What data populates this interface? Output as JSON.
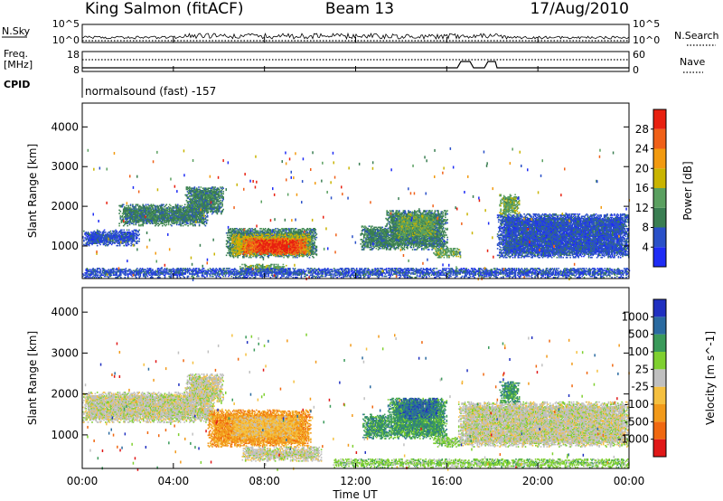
{
  "header": {
    "station": "King Salmon (fitACF)",
    "beam": "Beam 13",
    "date": "17/Aug/2010"
  },
  "left_labels": {
    "nsky": "N.Sky",
    "nsky_top": "10^5",
    "nsky_bottom": "10^0",
    "freq": "Freq.",
    "freq_unit": "[MHz]",
    "freq_top": "18",
    "freq_bottom": "8",
    "cpid": "CPID"
  },
  "right_labels": {
    "nsearch": "N.Search",
    "nsearch_top": "10^5",
    "nsearch_bottom": "10^0",
    "nave": "Nave",
    "nave_top": "60",
    "nave_bottom": "0"
  },
  "cpid_text": "normalsound (fast) -157",
  "xaxis": {
    "label": "Time UT",
    "ticks": [
      "00:00",
      "04:00",
      "08:00",
      "12:00",
      "16:00",
      "20:00",
      "00:00"
    ]
  },
  "colors": {
    "power": [
      "#1e2cf5",
      "#2a50c8",
      "#3a7e52",
      "#5aa060",
      "#c9b400",
      "#f29a10",
      "#f06018",
      "#e82010"
    ],
    "velocity": [
      "#e01818",
      "#f06810",
      "#f29a1a",
      "#f5c040",
      "#c0c0c0",
      "#7fd030",
      "#3a9a5a",
      "#2a6aa0",
      "#2030c0"
    ]
  },
  "chart_data": [
    {
      "type": "heatmap",
      "panel": "power",
      "ylabel": "Slant Range [km]",
      "yticks": [
        1000,
        2000,
        3000,
        4000
      ],
      "ylim": [
        180,
        4600
      ],
      "xlim_hours": [
        0,
        24
      ],
      "colorbar": {
        "label": "Power [dB]",
        "levels": [
          "4",
          "8",
          "12",
          "16",
          "20",
          "24",
          "28"
        ],
        "range": [
          0,
          32
        ]
      },
      "regions": [
        {
          "t0": 1.6,
          "t1": 5.5,
          "r0": 1500,
          "r1": 2050,
          "level": 2
        },
        {
          "t0": 4.5,
          "t1": 6.2,
          "r0": 1800,
          "r1": 2500,
          "level": 2
        },
        {
          "t0": 0.0,
          "t1": 2.5,
          "r0": 1000,
          "r1": 1400,
          "level": 1
        },
        {
          "t0": 6.3,
          "t1": 10.3,
          "r0": 700,
          "r1": 1450,
          "level": 2
        },
        {
          "t0": 6.5,
          "t1": 10.0,
          "r0": 750,
          "r1": 1300,
          "level": 4
        },
        {
          "t0": 7.0,
          "t1": 9.8,
          "r0": 780,
          "r1": 1200,
          "level": 6
        },
        {
          "t0": 7.6,
          "t1": 9.4,
          "r0": 820,
          "r1": 1130,
          "level": 7
        },
        {
          "t0": 6.9,
          "t1": 9.0,
          "r0": 300,
          "r1": 550,
          "level": 3
        },
        {
          "t0": 12.2,
          "t1": 13.6,
          "r0": 900,
          "r1": 1500,
          "level": 2
        },
        {
          "t0": 13.3,
          "t1": 16.0,
          "r0": 900,
          "r1": 1900,
          "level": 2
        },
        {
          "t0": 13.8,
          "t1": 15.5,
          "r0": 1200,
          "r1": 1800,
          "level": 3
        },
        {
          "t0": 15.4,
          "t1": 16.6,
          "r0": 700,
          "r1": 950,
          "level": 3
        },
        {
          "t0": 18.2,
          "t1": 24.0,
          "r0": 700,
          "r1": 1800,
          "level": 1
        },
        {
          "t0": 18.3,
          "t1": 19.2,
          "r0": 1750,
          "r1": 2300,
          "level": 3
        },
        {
          "t0": 0.0,
          "t1": 24.0,
          "r0": 200,
          "r1": 450,
          "level": 1
        }
      ]
    },
    {
      "type": "heatmap",
      "panel": "velocity",
      "ylabel": "Slant Range [km]",
      "yticks": [
        1000,
        2000,
        3000,
        4000
      ],
      "ylim": [
        180,
        4600
      ],
      "xlim_hours": [
        0,
        24
      ],
      "colorbar": {
        "label": "Velocity [m s^-1]",
        "levels": [
          "-1000",
          "-500",
          "-100",
          "-25",
          "25",
          "100",
          "500",
          "1000"
        ],
        "range": [
          -1200,
          1200
        ]
      },
      "regions": [
        {
          "t0": 0.0,
          "t1": 5.8,
          "r0": 1300,
          "r1": 2050,
          "level": 4
        },
        {
          "t0": 4.5,
          "t1": 6.2,
          "r0": 1800,
          "r1": 2500,
          "level": 4
        },
        {
          "t0": 5.5,
          "t1": 10.0,
          "r0": 700,
          "r1": 1600,
          "level": 2
        },
        {
          "t0": 6.5,
          "t1": 9.5,
          "r0": 900,
          "r1": 1450,
          "level": 3
        },
        {
          "t0": 7.0,
          "t1": 10.5,
          "r0": 350,
          "r1": 700,
          "level": 4
        },
        {
          "t0": 12.3,
          "t1": 13.5,
          "r0": 900,
          "r1": 1500,
          "level": 6
        },
        {
          "t0": 13.4,
          "t1": 16.0,
          "r0": 900,
          "r1": 1900,
          "level": 6
        },
        {
          "t0": 13.9,
          "t1": 15.6,
          "r0": 1400,
          "r1": 1900,
          "level": 7
        },
        {
          "t0": 15.4,
          "t1": 16.6,
          "r0": 700,
          "r1": 950,
          "level": 5
        },
        {
          "t0": 16.5,
          "t1": 24.0,
          "r0": 700,
          "r1": 1800,
          "level": 4
        },
        {
          "t0": 18.3,
          "t1": 19.2,
          "r0": 1750,
          "r1": 2300,
          "level": 6
        },
        {
          "t0": 11.0,
          "t1": 24.0,
          "r0": 200,
          "r1": 420,
          "level": 5
        }
      ]
    }
  ]
}
